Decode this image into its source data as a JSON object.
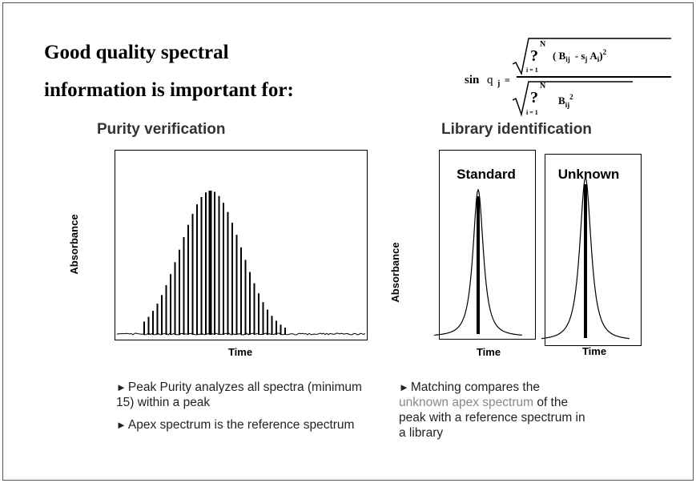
{
  "title": {
    "line1": "Good quality spectral",
    "line2": "information is important for:"
  },
  "formula": {
    "lhs": "sin",
    "theta": "q",
    "theta_sub": "j",
    "equals": "=",
    "sum_sign_top": "?",
    "sum_upper_top": "N",
    "sum_lower_top": "i = 1",
    "numerator": "( B",
    "num_sub1": "ij",
    "num_minus": "-  s",
    "num_sub2": "j",
    "num_a": "A",
    "num_sub3": "i",
    "num_close": ")",
    "num_exp": "2",
    "sum_sign_bottom": "?",
    "sum_upper_bottom": "N",
    "sum_lower_bottom": "i = 1",
    "denominator": "B",
    "den_sub": "ij",
    "den_exp": "2"
  },
  "left": {
    "heading": "Purity verification",
    "y_label": "Absorbance",
    "x_label": "Time",
    "bullets": [
      "Peak Purity analyzes all spectra (minimum 15) within a peak",
      "Apex spectrum is the reference spectrum"
    ]
  },
  "right": {
    "heading": "Library identification",
    "y_label": "Absorbance",
    "standard": {
      "label": "Standard",
      "x_label": "Time"
    },
    "unknown": {
      "label": "Unknown",
      "x_label": "Time"
    },
    "bullet": {
      "before": "Matching compares the ",
      "highlight": "unknown apex spectrum",
      "after": " of the peak with a reference spectrum in a library"
    }
  }
}
